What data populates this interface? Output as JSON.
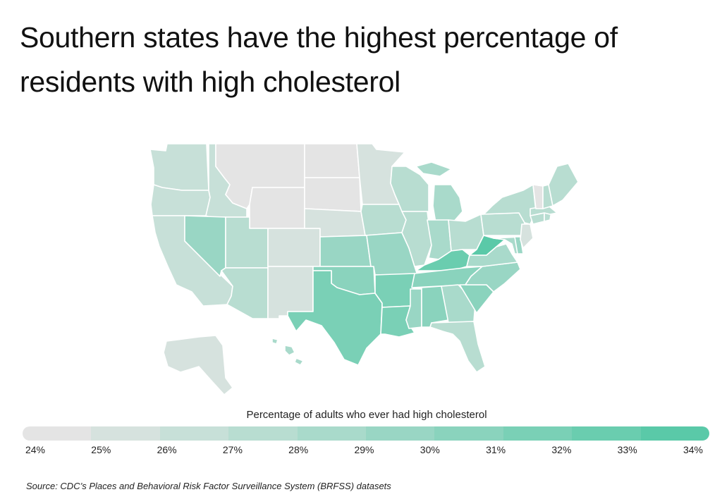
{
  "title": "Southern states have the highest percentage of residents with high cholesterol",
  "legend": {
    "title": "Percentage of adults who ever had high cholesterol",
    "ticks": [
      "24%",
      "25%",
      "26%",
      "27%",
      "28%",
      "29%",
      "30%",
      "31%",
      "32%",
      "33%",
      "34%"
    ],
    "colors": [
      "#e4e4e4",
      "#d6e2de",
      "#c7e0d8",
      "#b8ddd1",
      "#a9dacb",
      "#99d6c4",
      "#8ad3bd",
      "#7ad0b6",
      "#6acdaf",
      "#5ac9a8"
    ]
  },
  "source": "Source:  CDC’s Places and Behavioral Risk Factor Surveillance System (BRFSS) datasets",
  "states": {
    "WA": {
      "name": "Washington",
      "bucket": 2
    },
    "OR": {
      "name": "Oregon",
      "bucket": 2
    },
    "CA": {
      "name": "California",
      "bucket": 2
    },
    "ID": {
      "name": "Idaho",
      "bucket": 2
    },
    "NV": {
      "name": "Nevada",
      "bucket": 5
    },
    "MT": {
      "name": "Montana",
      "bucket": 0
    },
    "WY": {
      "name": "Wyoming",
      "bucket": 0
    },
    "UT": {
      "name": "Utah",
      "bucket": 3
    },
    "AZ": {
      "name": "Arizona",
      "bucket": 3
    },
    "CO": {
      "name": "Colorado",
      "bucket": 1
    },
    "NM": {
      "name": "New Mexico",
      "bucket": 1
    },
    "ND": {
      "name": "North Dakota",
      "bucket": 0
    },
    "SD": {
      "name": "South Dakota",
      "bucket": 0
    },
    "NE": {
      "name": "Nebraska",
      "bucket": 1
    },
    "KS": {
      "name": "Kansas",
      "bucket": 5
    },
    "OK": {
      "name": "Oklahoma",
      "bucket": 6
    },
    "TX": {
      "name": "Texas",
      "bucket": 7
    },
    "MN": {
      "name": "Minnesota",
      "bucket": 1
    },
    "IA": {
      "name": "Iowa",
      "bucket": 3
    },
    "MO": {
      "name": "Missouri",
      "bucket": 5
    },
    "AR": {
      "name": "Arkansas",
      "bucket": 7
    },
    "LA": {
      "name": "Louisiana",
      "bucket": 7
    },
    "WI": {
      "name": "Wisconsin",
      "bucket": 3
    },
    "IL": {
      "name": "Illinois",
      "bucket": 3
    },
    "MI": {
      "name": "Michigan",
      "bucket": 4
    },
    "IN": {
      "name": "Indiana",
      "bucket": 4
    },
    "OH": {
      "name": "Ohio",
      "bucket": 3
    },
    "KY": {
      "name": "Kentucky",
      "bucket": 8
    },
    "TN": {
      "name": "Tennessee",
      "bucket": 6
    },
    "MS": {
      "name": "Mississippi",
      "bucket": 5
    },
    "AL": {
      "name": "Alabama",
      "bucket": 6
    },
    "GA": {
      "name": "Georgia",
      "bucket": 4
    },
    "FL": {
      "name": "Florida",
      "bucket": 3
    },
    "SC": {
      "name": "South Carolina",
      "bucket": 6
    },
    "NC": {
      "name": "North Carolina",
      "bucket": 5
    },
    "VA": {
      "name": "Virginia",
      "bucket": 4
    },
    "WV": {
      "name": "West Virginia",
      "bucket": 9
    },
    "PA": {
      "name": "Pennsylvania",
      "bucket": 3
    },
    "NY": {
      "name": "New York",
      "bucket": 3
    },
    "MD": {
      "name": "Maryland",
      "bucket": 4
    },
    "DE": {
      "name": "Delaware",
      "bucket": 5
    },
    "NJ": {
      "name": "New Jersey",
      "bucket": 1
    },
    "CT": {
      "name": "Connecticut",
      "bucket": 3
    },
    "RI": {
      "name": "Rhode Island",
      "bucket": 3
    },
    "MA": {
      "name": "Massachusetts",
      "bucket": 3
    },
    "VT": {
      "name": "Vermont",
      "bucket": 0
    },
    "NH": {
      "name": "New Hampshire",
      "bucket": 3
    },
    "ME": {
      "name": "Maine",
      "bucket": 3
    },
    "AK": {
      "name": "Alaska",
      "bucket": 1
    },
    "HI": {
      "name": "Hawaii",
      "bucket": 4
    }
  }
}
